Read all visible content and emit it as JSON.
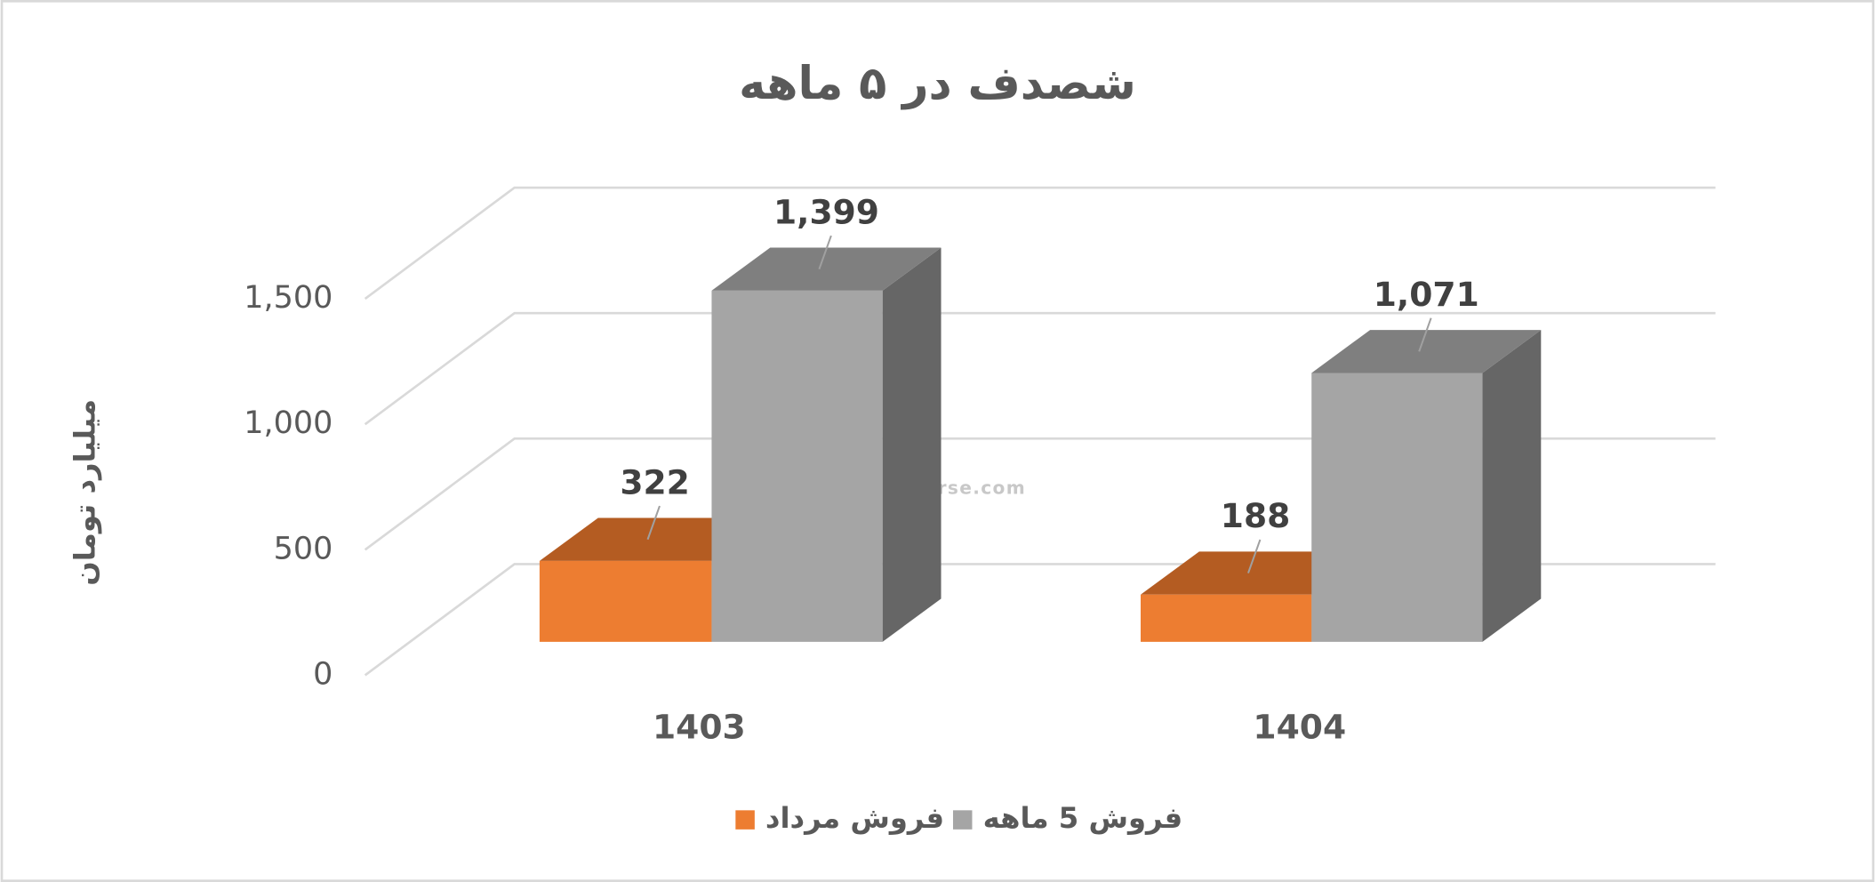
{
  "chart_data": {
    "type": "bar3d",
    "title": "شصدف در ۵ ماهه",
    "y_label": "میلیارد تومان",
    "categories": [
      "1403",
      "1404"
    ],
    "series": [
      {
        "name": "فروش مرداد",
        "color": "#ed7d31",
        "top_color": "#b45c22",
        "values": [
          322,
          188
        ]
      },
      {
        "name": "فروش 5 ماهه",
        "color": "#a5a5a5",
        "top_color": "#7f7f7f",
        "side_color": "#666666",
        "values": [
          1399,
          1071
        ]
      }
    ],
    "value_labels": [
      [
        "322",
        "188"
      ],
      [
        "1,399",
        "1,071"
      ]
    ],
    "ylim": [
      0,
      1500
    ],
    "yticks": [
      0,
      500,
      {
        "value": 1000,
        "label": "1,000"
      },
      {
        "value": 1500,
        "label": "1,500"
      }
    ],
    "grid": true,
    "legend": "bottom",
    "watermark": "nabzebourse.com"
  }
}
